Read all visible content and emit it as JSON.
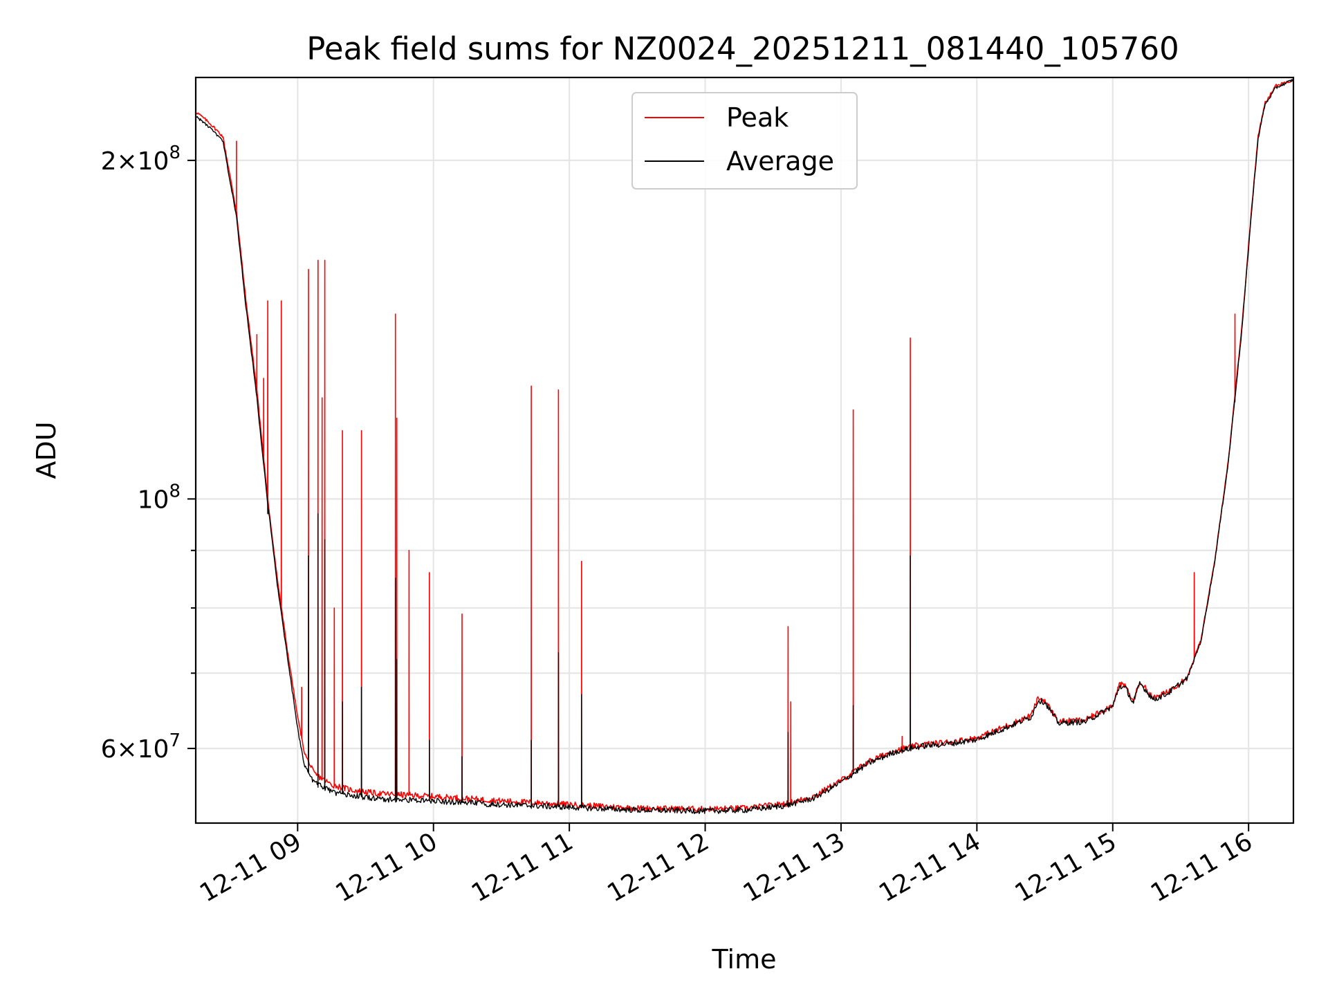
{
  "chart_data": {
    "type": "line",
    "title": "Peak field sums for NZ0024_20251211_081440_105760",
    "xlabel": "Time",
    "ylabel": "ADU",
    "yscale": "log",
    "ylim": [
      51500000,
      237000000
    ],
    "xlim": [
      8.25,
      16.33
    ],
    "grid": true,
    "legend_location": "upper center",
    "x_ticks": [
      {
        "value": 9,
        "label": "12-11 09"
      },
      {
        "value": 10,
        "label": "12-11 10"
      },
      {
        "value": 11,
        "label": "12-11 11"
      },
      {
        "value": 12,
        "label": "12-11 12"
      },
      {
        "value": 13,
        "label": "12-11 13"
      },
      {
        "value": 14,
        "label": "12-11 14"
      },
      {
        "value": 15,
        "label": "12-11 15"
      },
      {
        "value": 16,
        "label": "12-11 16"
      }
    ],
    "y_ticks_major": [
      {
        "value": 60000000,
        "mantissa": "6",
        "exponent": "7"
      },
      {
        "value": 100000000,
        "mantissa": "",
        "exponent": "8"
      },
      {
        "value": 200000000,
        "mantissa": "2",
        "exponent": "8"
      }
    ],
    "y_ticks_minor": [
      70000000,
      80000000,
      90000000
    ],
    "series": [
      {
        "name": "Peak",
        "color": "#ff0000",
        "base": [
          [
            8.25,
            221000000
          ],
          [
            8.35,
            216000000
          ],
          [
            8.45,
            210000000
          ],
          [
            8.55,
            180000000
          ],
          [
            8.62,
            150000000
          ],
          [
            8.7,
            125000000
          ],
          [
            8.78,
            100000000
          ],
          [
            8.85,
            85000000
          ],
          [
            8.92,
            74000000
          ],
          [
            9.0,
            64000000
          ],
          [
            9.05,
            59500000
          ],
          [
            9.12,
            57000000
          ],
          [
            9.25,
            55700000
          ],
          [
            9.4,
            55100000
          ],
          [
            9.6,
            54700000
          ],
          [
            10.0,
            54400000
          ],
          [
            10.5,
            53900000
          ],
          [
            11.0,
            53500000
          ],
          [
            11.5,
            53100000
          ],
          [
            12.0,
            53000000
          ],
          [
            12.3,
            53100000
          ],
          [
            12.6,
            53600000
          ],
          [
            12.8,
            54400000
          ],
          [
            13.0,
            56200000
          ],
          [
            13.2,
            58400000
          ],
          [
            13.4,
            59800000
          ],
          [
            13.6,
            60500000
          ],
          [
            13.8,
            60800000
          ],
          [
            14.0,
            61300000
          ],
          [
            14.2,
            62700000
          ],
          [
            14.4,
            64200000
          ],
          [
            14.45,
            66500000
          ],
          [
            14.5,
            66200000
          ],
          [
            14.6,
            63400000
          ],
          [
            14.8,
            63600000
          ],
          [
            14.9,
            64600000
          ],
          [
            15.0,
            65600000
          ],
          [
            15.05,
            68500000
          ],
          [
            15.1,
            68000000
          ],
          [
            15.15,
            66000000
          ],
          [
            15.2,
            68800000
          ],
          [
            15.3,
            66500000
          ],
          [
            15.4,
            67300000
          ],
          [
            15.55,
            69500000
          ],
          [
            15.65,
            75000000
          ],
          [
            15.75,
            88000000
          ],
          [
            15.85,
            108000000
          ],
          [
            15.95,
            142000000
          ],
          [
            16.02,
            180000000
          ],
          [
            16.07,
            210000000
          ],
          [
            16.12,
            225000000
          ],
          [
            16.2,
            233000000
          ],
          [
            16.33,
            236000000
          ]
        ],
        "spikes": [
          [
            8.55,
            208000000
          ],
          [
            8.7,
            140000000
          ],
          [
            8.75,
            128000000
          ],
          [
            8.78,
            150000000
          ],
          [
            8.88,
            150000000
          ],
          [
            9.03,
            68000000
          ],
          [
            9.08,
            160000000
          ],
          [
            9.15,
            163000000
          ],
          [
            9.18,
            123000000
          ],
          [
            9.2,
            163000000
          ],
          [
            9.27,
            80000000
          ],
          [
            9.33,
            115000000
          ],
          [
            9.47,
            115000000
          ],
          [
            9.72,
            146000000
          ],
          [
            9.73,
            118000000
          ],
          [
            9.82,
            90000000
          ],
          [
            9.97,
            86000000
          ],
          [
            10.21,
            79000000
          ],
          [
            10.72,
            126000000
          ],
          [
            10.92,
            125000000
          ],
          [
            11.09,
            88000000
          ],
          [
            12.61,
            77000000
          ],
          [
            12.63,
            66000000
          ],
          [
            13.09,
            120000000
          ],
          [
            13.45,
            61500000
          ],
          [
            13.51,
            139000000
          ],
          [
            15.6,
            86000000
          ],
          [
            15.9,
            146000000
          ]
        ]
      },
      {
        "name": "Average",
        "color": "#000000",
        "base": [
          [
            8.25,
            219000000
          ],
          [
            8.35,
            214000000
          ],
          [
            8.45,
            208000000
          ],
          [
            8.55,
            178000000
          ],
          [
            8.62,
            148000000
          ],
          [
            8.7,
            123000000
          ],
          [
            8.78,
            99000000
          ],
          [
            8.85,
            84000000
          ],
          [
            8.92,
            73000000
          ],
          [
            9.0,
            62500000
          ],
          [
            9.05,
            58000000
          ],
          [
            9.12,
            56000000
          ],
          [
            9.25,
            54900000
          ],
          [
            9.4,
            54500000
          ],
          [
            9.6,
            54100000
          ],
          [
            10.0,
            53900000
          ],
          [
            10.5,
            53500000
          ],
          [
            11.0,
            53200000
          ],
          [
            11.5,
            52900000
          ],
          [
            12.0,
            52800000
          ],
          [
            12.3,
            52900000
          ],
          [
            12.6,
            53400000
          ],
          [
            12.8,
            54200000
          ],
          [
            13.0,
            56000000
          ],
          [
            13.2,
            58200000
          ],
          [
            13.4,
            59600000
          ],
          [
            13.6,
            60300000
          ],
          [
            13.8,
            60600000
          ],
          [
            14.0,
            61100000
          ],
          [
            14.2,
            62500000
          ],
          [
            14.4,
            64000000
          ],
          [
            14.45,
            66200000
          ],
          [
            14.5,
            66000000
          ],
          [
            14.6,
            63200000
          ],
          [
            14.8,
            63400000
          ],
          [
            14.9,
            64400000
          ],
          [
            15.0,
            65400000
          ],
          [
            15.05,
            68200000
          ],
          [
            15.1,
            67800000
          ],
          [
            15.15,
            65800000
          ],
          [
            15.2,
            68600000
          ],
          [
            15.3,
            66300000
          ],
          [
            15.4,
            67100000
          ],
          [
            15.55,
            69300000
          ],
          [
            15.65,
            74800000
          ],
          [
            15.75,
            87800000
          ],
          [
            15.85,
            107500000
          ],
          [
            15.95,
            141000000
          ],
          [
            16.02,
            179000000
          ],
          [
            16.07,
            209000000
          ],
          [
            16.12,
            224000000
          ],
          [
            16.2,
            232000000
          ],
          [
            16.33,
            236000000
          ]
        ],
        "spikes": [
          [
            8.78,
            97000000
          ],
          [
            9.08,
            89000000
          ],
          [
            9.15,
            97000000
          ],
          [
            9.2,
            92000000
          ],
          [
            9.33,
            66000000
          ],
          [
            9.47,
            68000000
          ],
          [
            9.72,
            85000000
          ],
          [
            9.73,
            72000000
          ],
          [
            9.97,
            61000000
          ],
          [
            10.21,
            59000000
          ],
          [
            10.72,
            61000000
          ],
          [
            10.92,
            73000000
          ],
          [
            11.09,
            67000000
          ],
          [
            12.61,
            62000000
          ],
          [
            13.09,
            65500000
          ],
          [
            13.51,
            89000000
          ],
          [
            15.9,
            122000000
          ]
        ]
      }
    ]
  },
  "legend": {
    "items": [
      {
        "label": "Peak",
        "color": "#ff0000"
      },
      {
        "label": "Average",
        "color": "#000000"
      }
    ]
  }
}
